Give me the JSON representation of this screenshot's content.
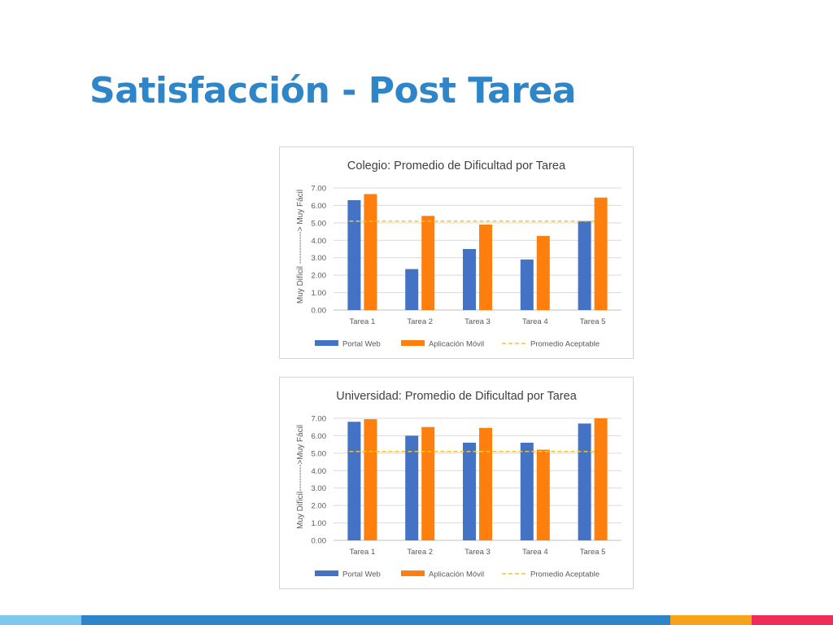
{
  "slide": {
    "title": "Satisfacción - Post Tarea"
  },
  "theme": {
    "title_color": "#2e86c8",
    "series_colors": [
      "#4472c4",
      "#ff7f0e"
    ],
    "reference_color": "#f5c518",
    "bottom_bar_colors": [
      "#7ec8f0",
      "#2e86c8",
      "#f7a21b",
      "#ef2b5a"
    ]
  },
  "chart_data": [
    {
      "type": "bar",
      "title": "Colegio: Promedio de Dificultad por Tarea",
      "xlabel": "",
      "ylabel": "Muy Difícil ------------> Muy Fácil",
      "categories": [
        "Tarea 1",
        "Tarea 2",
        "Tarea 3",
        "Tarea 4",
        "Tarea 5"
      ],
      "ylim": [
        0,
        7
      ],
      "yticks": [
        "0.00",
        "1.00",
        "2.00",
        "3.00",
        "4.00",
        "5.00",
        "6.00",
        "7.00"
      ],
      "grid": true,
      "legend_position": "bottom",
      "series": [
        {
          "name": "Portal Web",
          "values": [
            6.3,
            2.35,
            3.5,
            2.9,
            5.1
          ]
        },
        {
          "name": "Aplicación Móvil",
          "values": [
            6.65,
            5.4,
            4.9,
            4.25,
            6.45
          ]
        }
      ],
      "reference_line": {
        "name": "Promedio Aceptable",
        "value": 5.1,
        "style": "dashed"
      }
    },
    {
      "type": "bar",
      "title": "Universidad: Promedio de Dificultad por Tarea",
      "xlabel": "",
      "ylabel": "Muy Difícil---------->Muy Fácil",
      "categories": [
        "Tarea 1",
        "Tarea 2",
        "Tarea 3",
        "Tarea 4",
        "Tarea 5"
      ],
      "ylim": [
        0,
        7
      ],
      "yticks": [
        "0.00",
        "1.00",
        "2.00",
        "3.00",
        "4.00",
        "5.00",
        "6.00",
        "7.00"
      ],
      "grid": true,
      "legend_position": "bottom",
      "series": [
        {
          "name": "Portal Web",
          "values": [
            6.8,
            6.0,
            5.6,
            5.6,
            6.7
          ]
        },
        {
          "name": "Aplicación Móvil",
          "values": [
            6.95,
            6.5,
            6.45,
            5.2,
            7.0
          ]
        }
      ],
      "reference_line": {
        "name": "Promedio Aceptable",
        "value": 5.1,
        "style": "dashed"
      }
    }
  ]
}
